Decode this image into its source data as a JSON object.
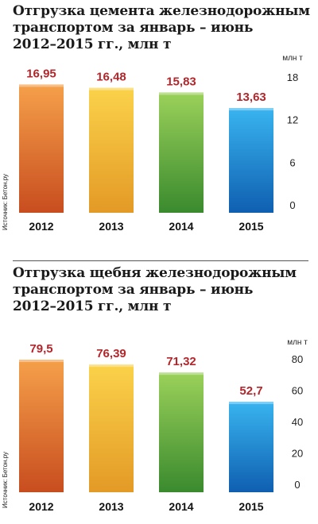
{
  "chart_data": [
    {
      "type": "bar",
      "title": "Отгрузка цемента железнодорожным\nтранспортом за январь – июнь\n2012–2015 гг., млн т",
      "categories": [
        "2012",
        "2013",
        "2014",
        "2015"
      ],
      "values": [
        16.95,
        16.48,
        15.83,
        13.63
      ],
      "value_labels": [
        "16,95",
        "16,48",
        "15,83",
        "13,63"
      ],
      "ylabel": "млн т",
      "yticks": [
        0,
        6,
        12,
        18
      ],
      "ylim": [
        0,
        18
      ],
      "source": "Источник: Бетон.ру",
      "grid": false,
      "legend": "none"
    },
    {
      "type": "bar",
      "title": "Отгрузка щебня железнодорожным\nтранспортом за январь – июнь\n2012–2015 гг., млн т",
      "categories": [
        "2012",
        "2013",
        "2014",
        "2015"
      ],
      "values": [
        79.5,
        76.39,
        71.32,
        52.7
      ],
      "value_labels": [
        "79,5",
        "76,39",
        "71,32",
        "52,7"
      ],
      "ylabel": "млн т",
      "yticks": [
        0,
        20,
        40,
        60,
        80
      ],
      "ylim": [
        0,
        80
      ],
      "source": "Источник: Бетон.ру",
      "grid": false,
      "legend": "none"
    }
  ],
  "colors": {
    "label_red": "#b3262b",
    "bar_gradients": [
      [
        "#f5a04a",
        "#c84d1f"
      ],
      [
        "#fbd24a",
        "#e39a26"
      ],
      [
        "#9bd15a",
        "#3a8a2e"
      ],
      [
        "#39b4f0",
        "#0f5fb0"
      ]
    ]
  }
}
